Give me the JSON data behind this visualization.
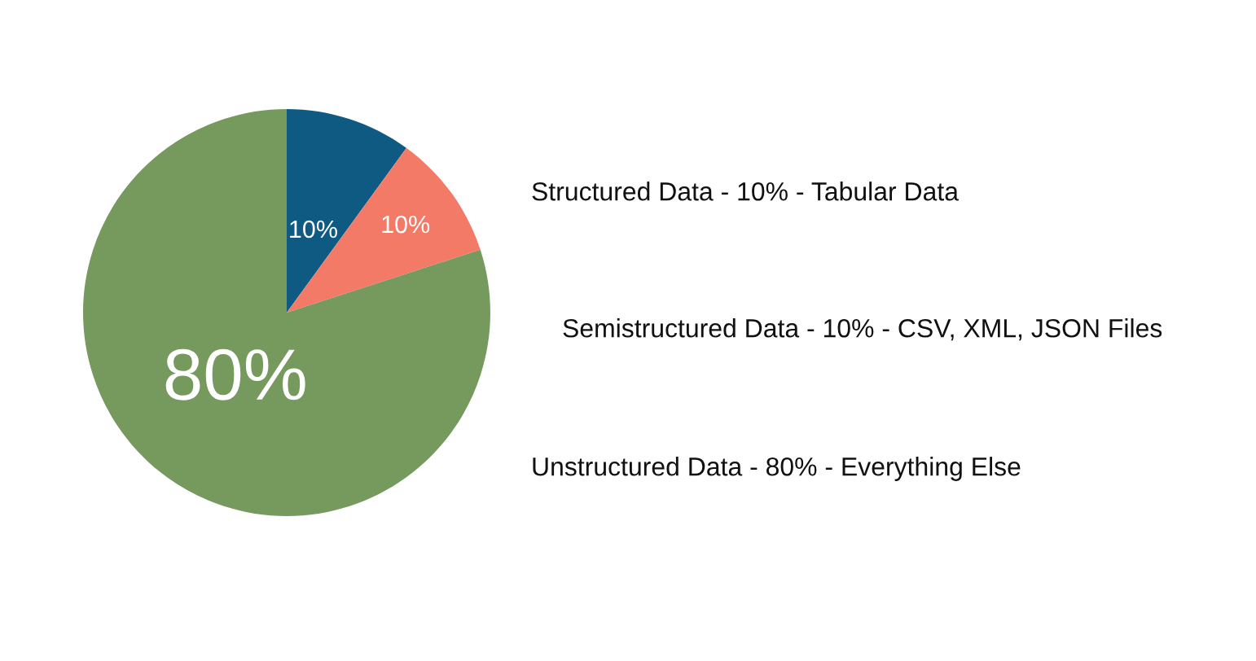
{
  "chart_data": {
    "type": "pie",
    "categories": [
      null,
      null,
      null
    ],
    "annotations": [
      "Structured Data - 10% - Tabular Data",
      "Semistructured Data - 10% - CSV, XML, JSON Files",
      "Unstructured Data - 80% - Everything Else"
    ],
    "values": [
      10,
      10,
      80
    ],
    "colors": [
      "#0f5a82",
      "#f47a68",
      "#76995e"
    ],
    "value_labels": [
      "10%",
      "10%",
      "80%"
    ]
  }
}
